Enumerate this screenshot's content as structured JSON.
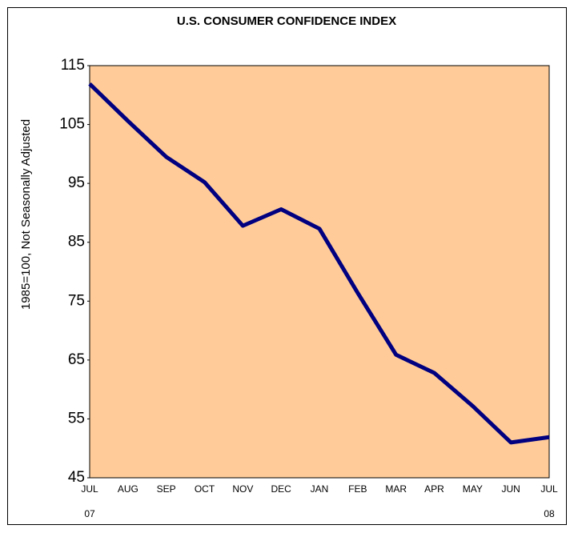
{
  "chart_data": {
    "type": "line",
    "title": "U.S. CONSUMER CONFIDENCE INDEX",
    "y_label": "1985=100, Not Seasonally Adjusted",
    "categories": [
      "JUL\n07",
      "AUG",
      "SEP",
      "OCT",
      "NOV",
      "DEC",
      "JAN",
      "FEB",
      "MAR",
      "APR",
      "MAY",
      "JUN",
      "JUL\n08"
    ],
    "series": [
      {
        "name": "Consumer Confidence Index",
        "color": "#000080",
        "values": [
          111.9,
          105.6,
          99.5,
          95.2,
          87.8,
          90.6,
          87.3,
          76.4,
          65.9,
          62.8,
          57.2,
          51.0,
          51.9
        ]
      }
    ],
    "ylim": [
      45,
      115
    ],
    "yticks": [
      45,
      55,
      65,
      75,
      85,
      95,
      105,
      115
    ],
    "plot_background": "#FFCC99",
    "grid": false
  }
}
